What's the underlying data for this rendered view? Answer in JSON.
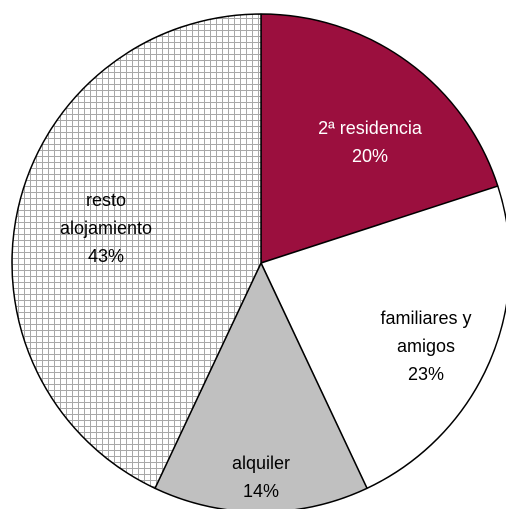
{
  "chart_data": {
    "type": "pie",
    "categories": [
      "2ª residencia",
      "familiares y amigos",
      "alquiler",
      "resto alojamiento"
    ],
    "values": [
      20,
      23,
      14,
      43
    ],
    "value_labels": [
      "20%",
      "23%",
      "14%",
      "43%"
    ],
    "colors": [
      "#9b0f3e",
      "#ffffff",
      "#c0c0c0",
      "#ffffff"
    ],
    "patterns": [
      null,
      null,
      null,
      "crosshatch"
    ]
  }
}
